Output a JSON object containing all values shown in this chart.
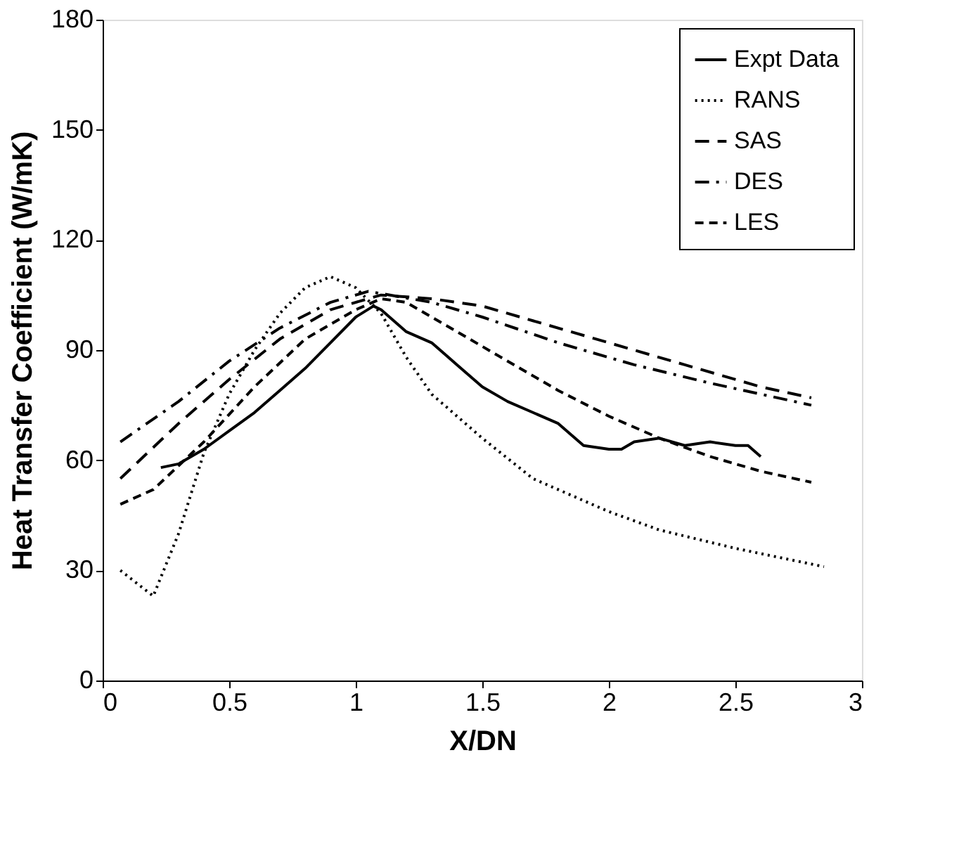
{
  "chart_data": {
    "type": "line",
    "xlabel": "X/DN",
    "ylabel": "Heat Transfer Coefficient (W/mK)",
    "xlim": [
      0,
      3
    ],
    "xticks": [
      0,
      0.5,
      1,
      1.5,
      2,
      2.5,
      3
    ],
    "ylim": [
      0,
      180
    ],
    "yticks": [
      0,
      30,
      60,
      90,
      120,
      150,
      180
    ],
    "grid": false,
    "legend": "top right",
    "marker": "none",
    "series": [
      {
        "name": "Expt Data",
        "color": "#000000",
        "line_style": "solid",
        "x": [
          0.23,
          0.3,
          0.4,
          0.5,
          0.6,
          0.7,
          0.8,
          0.9,
          1.0,
          1.07,
          1.1,
          1.2,
          1.3,
          1.4,
          1.5,
          1.6,
          1.7,
          1.8,
          1.9,
          2.0,
          2.05,
          2.1,
          2.2,
          2.3,
          2.4,
          2.5,
          2.55,
          2.6
        ],
        "values": [
          58,
          59,
          63,
          68,
          73,
          79,
          85,
          92,
          99,
          102,
          101,
          95,
          92,
          86,
          80,
          76,
          73,
          70,
          64,
          63,
          63,
          65,
          66,
          64,
          65,
          64,
          64,
          61
        ]
      },
      {
        "name": "RANS",
        "color": "#000000",
        "line_style": "dotted",
        "x": [
          0.07,
          0.2,
          0.3,
          0.4,
          0.5,
          0.6,
          0.7,
          0.8,
          0.9,
          1.0,
          1.1,
          1.2,
          1.3,
          1.5,
          1.7,
          2.0,
          2.2,
          2.5,
          2.85
        ],
        "values": [
          30,
          23,
          40,
          62,
          78,
          90,
          100,
          107,
          110,
          107,
          100,
          88,
          78,
          66,
          55,
          46,
          41,
          36,
          31
        ]
      },
      {
        "name": "SAS",
        "color": "#000000",
        "line_style": "dashed",
        "x": [
          0.07,
          0.3,
          0.5,
          0.7,
          0.9,
          1.1,
          1.3,
          1.5,
          1.7,
          2.0,
          2.3,
          2.6,
          2.8
        ],
        "values": [
          55,
          70,
          82,
          93,
          101,
          105,
          104,
          102,
          98,
          92,
          86,
          80,
          77
        ]
      },
      {
        "name": "DES",
        "color": "#000000",
        "line_style": "dashdot",
        "x": [
          0.07,
          0.3,
          0.5,
          0.7,
          0.9,
          1.05,
          1.3,
          1.5,
          1.8,
          2.1,
          2.4,
          2.8
        ],
        "values": [
          65,
          76,
          87,
          96,
          103,
          106,
          103,
          99,
          92,
          86,
          81,
          75
        ]
      },
      {
        "name": "LES",
        "color": "#000000",
        "line_style": "shortdash",
        "x": [
          0.07,
          0.2,
          0.4,
          0.6,
          0.8,
          1.0,
          1.1,
          1.2,
          1.4,
          1.6,
          1.8,
          2.0,
          2.2,
          2.4,
          2.6,
          2.8
        ],
        "values": [
          48,
          52,
          65,
          80,
          93,
          101,
          104,
          103,
          95,
          87,
          79,
          72,
          66,
          61,
          57,
          54
        ]
      }
    ]
  }
}
